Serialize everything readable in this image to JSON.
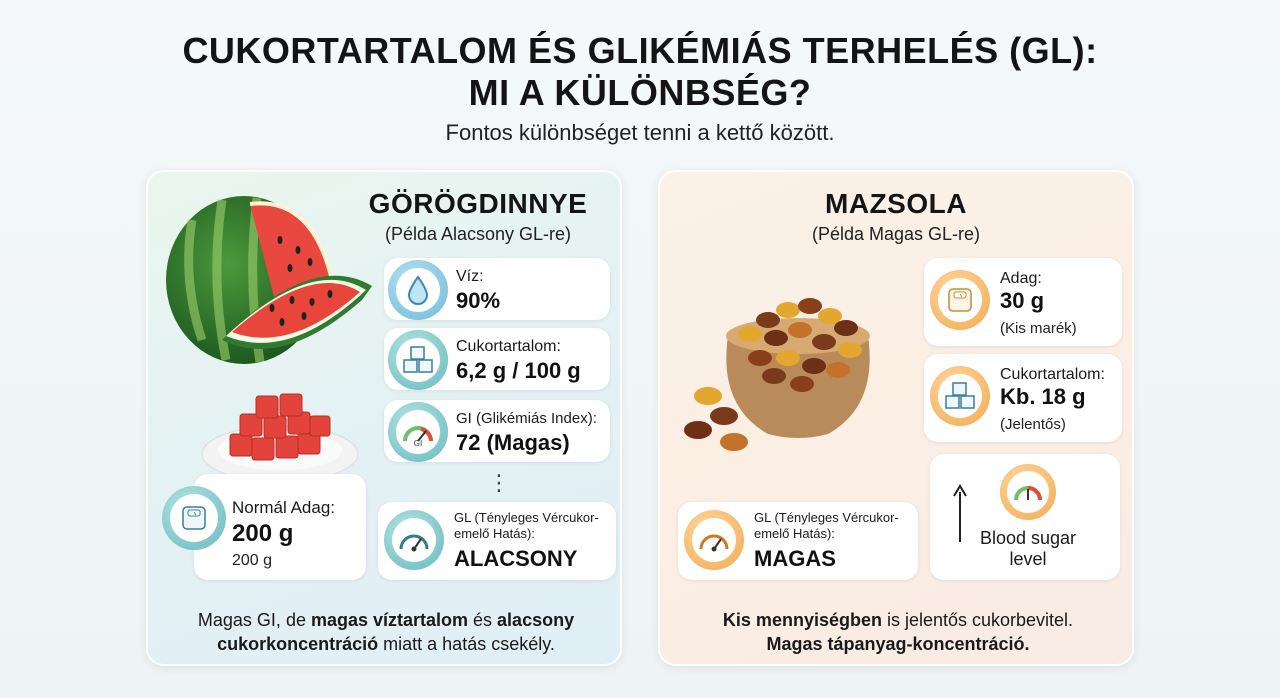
{
  "header": {
    "title_line1": "CUKORTARTALOM ÉS GLIKÉMIÁS TERHELÉS (GL):",
    "title_line2": "MI A KÜLÖNBSÉG?",
    "subtitle": "Fontos különbséget tenni a kettő között."
  },
  "left": {
    "title": "GÖRÖGDINNYE",
    "subtitle": "(Példa Alacsony GL-re)",
    "water": {
      "label": "Víz:",
      "value": "90%"
    },
    "sugar": {
      "label": "Cukortartalom:",
      "value": "6,2 g / 100 g"
    },
    "gi": {
      "label": "GI (Glikémiás Index):",
      "value": "72 (Magas)"
    },
    "dots": "⋮",
    "serving": {
      "label": "Normál Adag:",
      "value": "200 g",
      "note": "200 g"
    },
    "gl": {
      "label_line1": "GL (Tényleges Vércukor-",
      "label_line2": "emelő Hatás):",
      "value": "ALACSONY"
    },
    "bottom": {
      "l1_a": "Magas GI, de ",
      "l1_b": "magas víztartalom",
      "l1_c": " és ",
      "l1_d": "alacsony",
      "l2_a": "cukorkoncentráció",
      "l2_b": " miatt a hatás csekély."
    },
    "colors": {
      "accent": "#6fb9d8"
    }
  },
  "right": {
    "title": "MAZSOLA",
    "subtitle": "(Példa Magas GL-re)",
    "serving": {
      "label": "Adag:",
      "value": "30 g",
      "note": "(Kis marék)"
    },
    "sugar": {
      "label": "Cukortartalom:",
      "value": "Kb. 18 g",
      "note": "(Jelentős)"
    },
    "gl": {
      "label_line1": "GL (Tényleges Vércukor-",
      "label_line2": "emelő Hatás):",
      "value": "MAGAS"
    },
    "blood": {
      "line1": "Blood sugar",
      "line2": "level"
    },
    "bottom": {
      "l1_a": "Kis mennyiségben",
      "l1_b": " is jelentős cukorbevitel.",
      "l2": "Magas tápanyag-koncentráció."
    },
    "colors": {
      "accent": "#f2a94e"
    }
  },
  "icons": [
    "water-drop-icon",
    "sugar-cubes-icon",
    "gauge-icon",
    "scale-icon",
    "arrow-up-icon",
    "watermelon-image",
    "raisin-bowl-image"
  ]
}
